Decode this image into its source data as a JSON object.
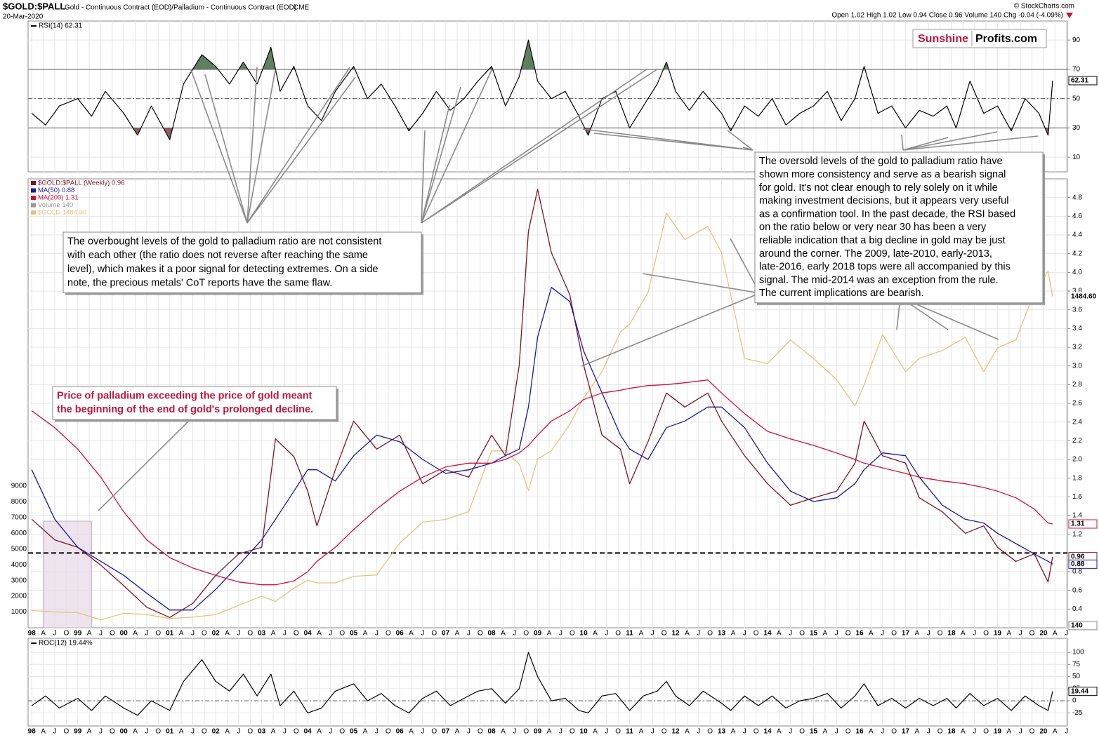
{
  "header": {
    "symbol": "$GOLD:$PALL",
    "description": "Gold - Continuous Contract (EOD)/Palladium - Continuous Contract (EOD)",
    "exchange": "CME",
    "date": "20-Mar-2020",
    "copyright": "© StockCharts.com",
    "quote": "Open 1.02 High 1.02 Low 0.94 Close 0.96 Volume 140 Chg -0.04 (-4.09%)"
  },
  "logo": {
    "left": "Sunshine",
    "right": "Profits.com"
  },
  "xlim": [
    1997.92,
    2020.52
  ],
  "xticks": [
    {
      "value": 1998,
      "label": "98"
    },
    {
      "value": 1998.25,
      "label": "A"
    },
    {
      "value": 1998.5,
      "label": "J"
    },
    {
      "value": 1998.75,
      "label": "O"
    },
    {
      "value": 1999,
      "label": "99"
    },
    {
      "value": 1999.25,
      "label": "A"
    },
    {
      "value": 1999.5,
      "label": "J"
    },
    {
      "value": 1999.75,
      "label": "O"
    },
    {
      "value": 2000,
      "label": "00"
    },
    {
      "value": 2000.25,
      "label": "A"
    },
    {
      "value": 2000.5,
      "label": "J"
    },
    {
      "value": 2000.75,
      "label": "O"
    },
    {
      "value": 2001,
      "label": "01"
    },
    {
      "value": 2001.25,
      "label": "A"
    },
    {
      "value": 2001.5,
      "label": "J"
    },
    {
      "value": 2001.75,
      "label": "O"
    },
    {
      "value": 2002,
      "label": "02"
    },
    {
      "value": 2002.25,
      "label": "A"
    },
    {
      "value": 2002.5,
      "label": "J"
    },
    {
      "value": 2002.75,
      "label": "O"
    },
    {
      "value": 2003,
      "label": "03"
    },
    {
      "value": 2003.25,
      "label": "A"
    },
    {
      "value": 2003.5,
      "label": "J"
    },
    {
      "value": 2003.75,
      "label": "O"
    },
    {
      "value": 2004,
      "label": "04"
    },
    {
      "value": 2004.25,
      "label": "A"
    },
    {
      "value": 2004.5,
      "label": "J"
    },
    {
      "value": 2004.75,
      "label": "O"
    },
    {
      "value": 2005,
      "label": "05"
    },
    {
      "value": 2005.25,
      "label": "A"
    },
    {
      "value": 2005.5,
      "label": "J"
    },
    {
      "value": 2005.75,
      "label": "O"
    },
    {
      "value": 2006,
      "label": "06"
    },
    {
      "value": 2006.25,
      "label": "A"
    },
    {
      "value": 2006.5,
      "label": "J"
    },
    {
      "value": 2006.75,
      "label": "O"
    },
    {
      "value": 2007,
      "label": "07"
    },
    {
      "value": 2007.25,
      "label": "A"
    },
    {
      "value": 2007.5,
      "label": "J"
    },
    {
      "value": 2007.75,
      "label": "O"
    },
    {
      "value": 2008,
      "label": "08"
    },
    {
      "value": 2008.25,
      "label": "A"
    },
    {
      "value": 2008.5,
      "label": "J"
    },
    {
      "value": 2008.75,
      "label": "O"
    },
    {
      "value": 2009,
      "label": "09"
    },
    {
      "value": 2009.25,
      "label": "A"
    },
    {
      "value": 2009.5,
      "label": "J"
    },
    {
      "value": 2009.75,
      "label": "O"
    },
    {
      "value": 2010,
      "label": "10"
    },
    {
      "value": 2010.25,
      "label": "A"
    },
    {
      "value": 2010.5,
      "label": "J"
    },
    {
      "value": 2010.75,
      "label": "O"
    },
    {
      "value": 2011,
      "label": "11"
    },
    {
      "value": 2011.25,
      "label": "A"
    },
    {
      "value": 2011.5,
      "label": "J"
    },
    {
      "value": 2011.75,
      "label": "O"
    },
    {
      "value": 2012,
      "label": "12"
    },
    {
      "value": 2012.25,
      "label": "A"
    },
    {
      "value": 2012.5,
      "label": "J"
    },
    {
      "value": 2012.75,
      "label": "O"
    },
    {
      "value": 2013,
      "label": "13"
    },
    {
      "value": 2013.25,
      "label": "A"
    },
    {
      "value": 2013.5,
      "label": "J"
    },
    {
      "value": 2013.75,
      "label": "O"
    },
    {
      "value": 2014,
      "label": "14"
    },
    {
      "value": 2014.25,
      "label": "A"
    },
    {
      "value": 2014.5,
      "label": "J"
    },
    {
      "value": 2014.75,
      "label": "O"
    },
    {
      "value": 2015,
      "label": "15"
    },
    {
      "value": 2015.25,
      "label": "A"
    },
    {
      "value": 2015.5,
      "label": "J"
    },
    {
      "value": 2015.75,
      "label": "O"
    },
    {
      "value": 2016,
      "label": "16"
    },
    {
      "value": 2016.25,
      "label": "A"
    },
    {
      "value": 2016.5,
      "label": "J"
    },
    {
      "value": 2016.75,
      "label": "O"
    },
    {
      "value": 2017,
      "label": "17"
    },
    {
      "value": 2017.25,
      "label": "A"
    },
    {
      "value": 2017.5,
      "label": "J"
    },
    {
      "value": 2017.75,
      "label": "O"
    },
    {
      "value": 2018,
      "label": "18"
    },
    {
      "value": 2018.25,
      "label": "A"
    },
    {
      "value": 2018.5,
      "label": "J"
    },
    {
      "value": 2018.75,
      "label": "O"
    },
    {
      "value": 2019,
      "label": "19"
    },
    {
      "value": 2019.25,
      "label": "A"
    },
    {
      "value": 2019.5,
      "label": "J"
    },
    {
      "value": 2019.75,
      "label": "O"
    },
    {
      "value": 2020,
      "label": "20"
    },
    {
      "value": 2020.25,
      "label": "A"
    },
    {
      "value": 2020.5,
      "label": "J"
    }
  ],
  "chart_data": [
    {
      "type": "line",
      "title": "RSI(14) 62.31",
      "x": [
        1998,
        1998.3,
        1998.6,
        1999,
        1999.3,
        1999.6,
        2000,
        2000.3,
        2000.6,
        2001,
        2001.3,
        2001.7,
        2002,
        2002.3,
        2002.6,
        2002.9,
        2003.2,
        2003.4,
        2003.7,
        2004,
        2004.3,
        2004.6,
        2005,
        2005.3,
        2005.6,
        2005.9,
        2006.2,
        2006.5,
        2006.8,
        2007.1,
        2007.4,
        2007.7,
        2008,
        2008.3,
        2008.6,
        2008.8,
        2009,
        2009.3,
        2009.6,
        2009.9,
        2010.1,
        2010.4,
        2010.7,
        2011,
        2011.3,
        2011.6,
        2011.8,
        2012,
        2012.3,
        2012.6,
        2013,
        2013.2,
        2013.5,
        2013.8,
        2014.1,
        2014.4,
        2014.7,
        2015,
        2015.3,
        2015.6,
        2015.9,
        2016.1,
        2016.4,
        2016.7,
        2017,
        2017.3,
        2017.6,
        2017.9,
        2018.1,
        2018.4,
        2018.7,
        2019,
        2019.3,
        2019.6,
        2019.9,
        2020.1,
        2020.2
      ],
      "series": [
        {
          "color": "#000000",
          "values": [
            40,
            32,
            45,
            50,
            38,
            55,
            40,
            25,
            45,
            22,
            60,
            80,
            72,
            60,
            75,
            60,
            85,
            55,
            72,
            45,
            35,
            55,
            72,
            50,
            60,
            45,
            28,
            40,
            55,
            42,
            50,
            62,
            72,
            45,
            65,
            90,
            62,
            50,
            55,
            38,
            25,
            50,
            55,
            30,
            45,
            60,
            75,
            55,
            42,
            55,
            40,
            28,
            45,
            38,
            50,
            32,
            40,
            45,
            55,
            35,
            50,
            72,
            40,
            45,
            30,
            42,
            38,
            45,
            30,
            62,
            40,
            45,
            28,
            50,
            40,
            25,
            62.31
          ]
        }
      ],
      "ylim": [
        0,
        103
      ],
      "yticks": [
        10,
        30,
        50,
        70,
        90
      ],
      "reference_lines": [
        {
          "value": 70,
          "style": "solid"
        },
        {
          "value": 50,
          "style": "dash"
        },
        {
          "value": 30,
          "style": "solid"
        }
      ],
      "fills": [
        {
          "above": 70,
          "color": "#5f7f5f"
        },
        {
          "below": 30,
          "color": "#8c5f5f"
        }
      ]
    },
    {
      "type": "line",
      "x": [
        1998,
        1998.5,
        1999,
        1999.5,
        2000,
        2000.5,
        2001,
        2001.5,
        2002,
        2002.5,
        2003,
        2003.3,
        2003.7,
        2004,
        2004.2,
        2004.6,
        2005,
        2005.5,
        2006,
        2006.5,
        2007,
        2007.5,
        2008,
        2008.3,
        2008.6,
        2008.8,
        2009,
        2009.3,
        2009.7,
        2010,
        2010.4,
        2010.8,
        2011,
        2011.4,
        2011.8,
        2012.2,
        2012.7,
        2013,
        2013.5,
        2014,
        2014.5,
        2015,
        2015.5,
        2015.9,
        2016.1,
        2016.5,
        2017,
        2017.3,
        2017.8,
        2018.3,
        2018.7,
        2019,
        2019.4,
        2019.8,
        2020.1,
        2020.2
      ],
      "series": [
        {
          "name": "$GOLD:$PALL (Weekly) 0.96",
          "color": "#7a1428",
          "values": [
            1.36,
            1.14,
            1.06,
            0.87,
            0.65,
            0.42,
            0.31,
            0.46,
            0.76,
            0.99,
            1.06,
            2.22,
            2.03,
            1.66,
            1.29,
            1.89,
            2.41,
            2.11,
            2.26,
            1.74,
            1.89,
            1.81,
            2.26,
            2.04,
            3.01,
            4.44,
            4.89,
            4.21,
            3.76,
            3.01,
            2.26,
            2.11,
            1.74,
            2.19,
            2.71,
            2.56,
            2.71,
            2.41,
            2.04,
            1.74,
            1.51,
            1.59,
            1.66,
            1.96,
            2.41,
            2.04,
            1.96,
            1.59,
            1.44,
            1.21,
            1.29,
            1.06,
            0.91,
            0.99,
            0.69,
            0.96
          ]
        },
        {
          "name": "MA(50) 0.88",
          "color": "#1a1a9a",
          "values": [
            1.89,
            1.36,
            1.06,
            0.91,
            0.76,
            0.57,
            0.39,
            0.39,
            0.61,
            0.87,
            1.14,
            1.36,
            1.66,
            1.89,
            1.89,
            1.77,
            2.04,
            2.26,
            2.19,
            2.0,
            1.85,
            1.89,
            1.96,
            2.04,
            2.11,
            2.56,
            3.31,
            3.84,
            3.69,
            3.16,
            2.71,
            2.26,
            2.11,
            2.0,
            2.34,
            2.41,
            2.56,
            2.56,
            2.34,
            1.96,
            1.66,
            1.55,
            1.59,
            1.74,
            1.89,
            2.07,
            2.04,
            1.81,
            1.51,
            1.36,
            1.32,
            1.21,
            1.1,
            0.99,
            0.91,
            0.88
          ]
        },
        {
          "name": "MA(200) 1.31",
          "color": "#d0103a",
          "values": [
            2.52,
            2.34,
            2.11,
            1.81,
            1.44,
            1.14,
            0.95,
            0.84,
            0.76,
            0.69,
            0.66,
            0.66,
            0.7,
            0.8,
            0.91,
            1.06,
            1.25,
            1.47,
            1.66,
            1.81,
            1.92,
            1.96,
            1.96,
            2.0,
            2.07,
            2.15,
            2.26,
            2.41,
            2.52,
            2.64,
            2.71,
            2.74,
            2.76,
            2.79,
            2.8,
            2.82,
            2.85,
            2.71,
            2.49,
            2.3,
            2.22,
            2.15,
            2.07,
            2.0,
            1.96,
            1.91,
            1.85,
            1.81,
            1.77,
            1.74,
            1.7,
            1.66,
            1.59,
            1.47,
            1.32,
            1.31
          ]
        },
        {
          "name": "$GOLD 1484.60",
          "color": "#e9c27a",
          "axis": "y2",
          "last_label": "1484.60",
          "values": [
            295,
            290,
            287,
            260,
            285,
            280,
            265,
            270,
            280,
            315,
            350,
            330,
            380,
            410,
            400,
            400,
            425,
            430,
            550,
            630,
            640,
            670,
            900,
            900,
            850,
            750,
            870,
            900,
            1000,
            1100,
            1200,
            1350,
            1380,
            1500,
            1800,
            1700,
            1750,
            1650,
            1250,
            1230,
            1320,
            1250,
            1170,
            1070,
            1150,
            1340,
            1200,
            1250,
            1280,
            1330,
            1200,
            1290,
            1320,
            1500,
            1580,
            1484.6
          ]
        }
      ],
      "ylim": [
        0.2,
        5.0
      ],
      "yticks": [
        0.4,
        0.6,
        0.8,
        1.2,
        1.4,
        1.6,
        1.8,
        {
          "value": 2,
          "label": "2.0"
        },
        2.2,
        2.4,
        2.6,
        2.8,
        {
          "value": 3,
          "label": "3.0"
        },
        3.2,
        3.4,
        3.6,
        3.8,
        {
          "value": 4,
          "label": "4.0"
        },
        4.2,
        4.4,
        4.6,
        4.8
      ],
      "y2lim": [
        230,
        1930
      ],
      "volume": {
        "name": "Volume 140",
        "value": 140,
        "color": "#999999",
        "lim": [
          0,
          28500
        ],
        "ticks": [
          1000,
          2000,
          3000,
          4000,
          5000,
          6000,
          7000,
          8000,
          9000
        ]
      },
      "reference_lines": [
        {
          "value": 1,
          "style": "heavy-dash"
        }
      ],
      "highlight": {
        "x": [
          1998.25,
          1999.3
        ],
        "y": [
          0.2,
          1.34
        ],
        "color": "#e9dde9"
      },
      "legend": "upper left"
    },
    {
      "type": "line",
      "title": "ROC(12) 19.44%",
      "x": [
        1998,
        1998.3,
        1998.6,
        1999,
        1999.3,
        1999.6,
        2000,
        2000.3,
        2000.6,
        2001,
        2001.3,
        2001.7,
        2002,
        2002.3,
        2002.6,
        2002.9,
        2003.2,
        2003.4,
        2003.7,
        2004,
        2004.3,
        2004.6,
        2005,
        2005.3,
        2005.6,
        2005.9,
        2006.2,
        2006.5,
        2006.8,
        2007.1,
        2007.4,
        2007.7,
        2008,
        2008.3,
        2008.6,
        2008.8,
        2009,
        2009.3,
        2009.6,
        2009.9,
        2010.1,
        2010.4,
        2010.7,
        2011,
        2011.3,
        2011.6,
        2011.8,
        2012,
        2012.3,
        2012.6,
        2013,
        2013.2,
        2013.5,
        2013.8,
        2014.1,
        2014.4,
        2014.7,
        2015,
        2015.3,
        2015.6,
        2015.9,
        2016.1,
        2016.4,
        2016.7,
        2017,
        2017.3,
        2017.6,
        2017.9,
        2018.1,
        2018.4,
        2018.7,
        2019,
        2019.3,
        2019.6,
        2019.9,
        2020.1,
        2020.2
      ],
      "series": [
        {
          "color": "#000000",
          "values": [
            -10,
            10,
            -15,
            5,
            -20,
            10,
            -15,
            -30,
            0,
            -20,
            40,
            85,
            40,
            20,
            55,
            10,
            55,
            -10,
            20,
            -25,
            -15,
            20,
            35,
            0,
            15,
            -10,
            -25,
            5,
            20,
            -10,
            5,
            20,
            25,
            -5,
            25,
            100,
            50,
            0,
            5,
            -20,
            -25,
            10,
            15,
            -20,
            10,
            20,
            40,
            10,
            -10,
            20,
            -5,
            -20,
            10,
            -10,
            10,
            -15,
            0,
            5,
            15,
            -15,
            10,
            35,
            -10,
            5,
            -15,
            5,
            -10,
            5,
            -15,
            15,
            -10,
            5,
            -20,
            10,
            -10,
            -20,
            19.44
          ]
        }
      ],
      "ylim": [
        -52,
        129
      ],
      "yticks": [
        -25,
        0,
        25,
        50,
        75,
        100
      ],
      "reference_lines": [
        {
          "value": 0,
          "style": "dash"
        }
      ]
    }
  ],
  "annotations": [
    {
      "lines": [
        "The overbought levels of the gold to palladium ratio are not consistent",
        "with each other (the ratio does not reverse after reaching the same",
        "level), which makes it a poor signal for detecting extremes. On a side",
        "note, the precious metals' CoT reports have the same flaw."
      ],
      "color": "#000000"
    },
    {
      "lines": [
        "Price of palladium exceeding the price of gold meant",
        "the beginning of the end of gold's prolonged decline."
      ],
      "color": "#c0143c",
      "bold": true
    },
    {
      "lines": [
        "The oversold levels of the gold to palladium ratio have",
        "shown more consistency and serve as a bearish signal",
        "for gold. It's not clear enough to rely solely on it while",
        "making investment decisions, but it appears very useful",
        "as a confirmation tool. In the past decade, the RSI based",
        "on the ratio below or very near 30 has been a very",
        "reliable indication that a big decline in gold may be just",
        "around the corner. The 2009, late-2010, early-2013,",
        "late-2016, early 2018 tops were all accompanied by this",
        "signal. The mid-2014 was an exception from the rule.",
        "The current implications are bearish."
      ],
      "color": "#000000"
    }
  ]
}
